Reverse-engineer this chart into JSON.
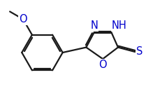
{
  "background": "#ffffff",
  "bond_color": "#1a1a1a",
  "atom_colors": {
    "N": "#0000cc",
    "O": "#0000cc",
    "S": "#0000cc",
    "C": "#1a1a1a",
    "H": "#1a1a1a"
  },
  "font_size_atom": 10.5,
  "line_width": 1.6,
  "dbo": 0.02,
  "figsize": [
    2.19,
    1.47
  ],
  "dpi": 100,
  "xlim": [
    0,
    2.19
  ],
  "ylim": [
    0,
    1.47
  ]
}
